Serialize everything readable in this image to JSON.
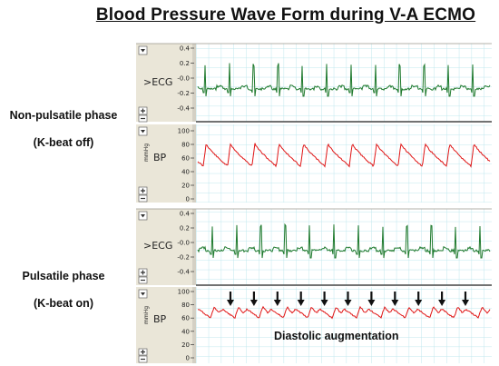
{
  "title": "Blood Pressure Wave Form during V-A ECMO",
  "phases": [
    {
      "name": "Non-pulsatile phase",
      "mode": "(K-beat off)"
    },
    {
      "name": "Pulsatile phase",
      "mode": "(K-beat on)"
    }
  ],
  "channels": {
    "ecg_label": ">ECG",
    "bp_label": "BP",
    "bp_unit": "mmHg",
    "ecg_ticks": [
      "0.4",
      "0.2",
      "-0.0",
      "-0.2",
      "-0.4"
    ],
    "bp_ticks": [
      "100",
      "80",
      "60",
      "40",
      "20",
      "0"
    ]
  },
  "annotation": "Diastolic augmentation",
  "panels": [
    {
      "beats": 12,
      "pulsatile": false
    },
    {
      "beats": 12,
      "pulsatile": true,
      "arrows": 11
    }
  ],
  "colors": {
    "ecg": "#1f7a2e",
    "bp": "#e01515",
    "grid": "#bfe7ee",
    "side_panel": "#eae6d8"
  },
  "icons": [
    "collapse-triangle-icon",
    "plus-icon",
    "minus-icon",
    "arrow-down-icon"
  ]
}
